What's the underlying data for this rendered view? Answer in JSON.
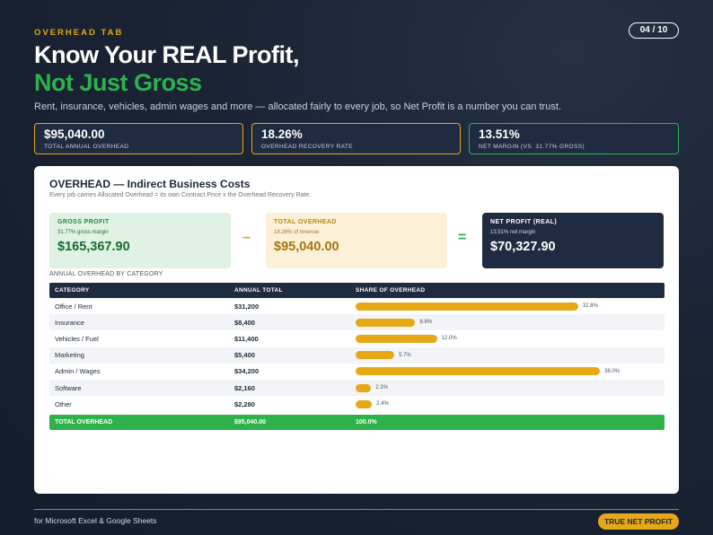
{
  "header": {
    "tab_label": "OVERHEAD TAB",
    "page": "04 / 10",
    "title_line1": "Know Your REAL Profit,",
    "title_line2": "Not Just Gross",
    "subtitle": "Rent, insurance, vehicles, admin wages and more — allocated fairly to every job, so Net Profit is a number you can trust."
  },
  "kpis": [
    {
      "value": "$95,040.00",
      "label": "TOTAL ANNUAL OVERHEAD"
    },
    {
      "value": "18.26%",
      "label": "OVERHEAD RECOVERY RATE"
    },
    {
      "value": "13.51%",
      "label": "NET MARGIN (VS. 31.77% GROSS)"
    }
  ],
  "card": {
    "title": "OVERHEAD — Indirect Business Costs",
    "subtitle": "Every job carries Allocated Overhead = its own Contract Price x the Overhead Recovery Rate.",
    "equation": {
      "gross": {
        "label": "GROSS PROFIT",
        "note": "31.77% gross margin",
        "value": "$165,367.90"
      },
      "minus": "–",
      "overhead": {
        "label": "TOTAL OVERHEAD",
        "note": "18.26% of revenue",
        "value": "$95,040.00"
      },
      "equals": "=",
      "net": {
        "label": "NET PROFIT (REAL)",
        "note": "13.51% net margin",
        "value": "$70,327.90"
      }
    },
    "section_label": "ANNUAL OVERHEAD BY CATEGORY",
    "table": {
      "headers": [
        "CATEGORY",
        "ANNUAL TOTAL",
        "SHARE OF OVERHEAD"
      ],
      "rows": [
        {
          "category": "Office / Rent",
          "total": "$31,200",
          "share": "32.8%",
          "share_value": 32.8
        },
        {
          "category": "Insurance",
          "total": "$8,400",
          "share": "8.8%",
          "share_value": 8.8
        },
        {
          "category": "Vehicles / Fuel",
          "total": "$11,400",
          "share": "12.0%",
          "share_value": 12.0
        },
        {
          "category": "Marketing",
          "total": "$5,400",
          "share": "5.7%",
          "share_value": 5.7
        },
        {
          "category": "Admin / Wages",
          "total": "$34,200",
          "share": "36.0%",
          "share_value": 36.0
        },
        {
          "category": "Software",
          "total": "$2,160",
          "share": "2.3%",
          "share_value": 2.3
        },
        {
          "category": "Other",
          "total": "$2,280",
          "share": "2.4%",
          "share_value": 2.4
        }
      ],
      "footer": {
        "label": "TOTAL OVERHEAD",
        "total": "$95,040.00",
        "share": "100.0%"
      }
    }
  },
  "footer": {
    "text": "for Microsoft Excel & Google Sheets",
    "badge": "TRUE NET PROFIT"
  },
  "colors": {
    "accent": "#e6a817",
    "green": "#2eb14b",
    "navy": "#1f2b40"
  }
}
